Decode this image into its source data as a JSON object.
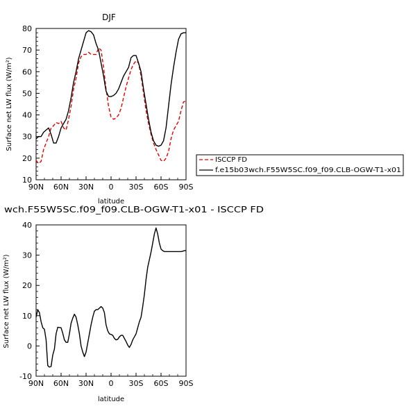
{
  "chart_data": [
    {
      "type": "line",
      "title": "DJF",
      "xlabel": "latitude",
      "ylabel": "Surface net LW flux (W/m²)",
      "xlim": [
        90,
        -90
      ],
      "ylim": [
        10,
        80
      ],
      "xtick_values": [
        90,
        60,
        30,
        0,
        -30,
        -60,
        -90
      ],
      "xtick_labels": [
        "90N",
        "60N",
        "30N",
        "0",
        "30S",
        "60S",
        "90S"
      ],
      "ytick_values": [
        10,
        20,
        30,
        40,
        50,
        60,
        70,
        80
      ],
      "ytick_labels": [
        "10",
        "20",
        "30",
        "40",
        "50",
        "60",
        "70",
        "80"
      ],
      "legend_position": "right",
      "series": [
        {
          "name": "ISCCP FD",
          "color": "#e00000",
          "dash": "dashed",
          "points": [
            [
              90,
              19
            ],
            [
              87,
              17.5
            ],
            [
              84,
              18.5
            ],
            [
              81,
              24
            ],
            [
              78,
              27
            ],
            [
              75,
              30
            ],
            [
              72,
              34
            ],
            [
              69,
              35
            ],
            [
              66,
              36.5
            ],
            [
              63,
              36
            ],
            [
              60,
              37
            ],
            [
              57,
              34
            ],
            [
              54,
              33
            ],
            [
              51,
              38
            ],
            [
              48,
              44
            ],
            [
              45,
              52
            ],
            [
              42,
              57
            ],
            [
              39,
              64
            ],
            [
              36,
              67
            ],
            [
              33,
              68
            ],
            [
              30,
              68
            ],
            [
              27,
              69
            ],
            [
              24,
              68
            ],
            [
              21,
              68
            ],
            [
              18,
              68
            ],
            [
              15,
              71
            ],
            [
              12,
              70
            ],
            [
              9,
              62
            ],
            [
              6,
              52
            ],
            [
              3,
              44
            ],
            [
              0,
              39
            ],
            [
              -3,
              38
            ],
            [
              -6,
              38.5
            ],
            [
              -9,
              40
            ],
            [
              -12,
              43
            ],
            [
              -15,
              48
            ],
            [
              -18,
              53
            ],
            [
              -21,
              57
            ],
            [
              -24,
              61
            ],
            [
              -27,
              63.5
            ],
            [
              -30,
              65
            ],
            [
              -33,
              64
            ],
            [
              -36,
              58
            ],
            [
              -39,
              50
            ],
            [
              -42,
              42
            ],
            [
              -45,
              36
            ],
            [
              -48,
              31
            ],
            [
              -51,
              27
            ],
            [
              -54,
              24
            ],
            [
              -57,
              21.5
            ],
            [
              -60,
              19
            ],
            [
              -63,
              18.5
            ],
            [
              -66,
              20
            ],
            [
              -69,
              23
            ],
            [
              -72,
              29
            ],
            [
              -75,
              33
            ],
            [
              -78,
              35
            ],
            [
              -81,
              37
            ],
            [
              -84,
              42
            ],
            [
              -87,
              46
            ],
            [
              -90,
              46.5
            ]
          ]
        },
        {
          "name": "f.e15b03wch.F55W5SC.f09_f09.CLB-OGW-T1-x01",
          "color": "#000000",
          "dash": "solid",
          "points": [
            [
              90,
              29
            ],
            [
              87,
              30
            ],
            [
              84,
              30
            ],
            [
              81,
              32
            ],
            [
              78,
              33
            ],
            [
              75,
              34
            ],
            [
              72,
              31
            ],
            [
              69,
              27
            ],
            [
              66,
              27
            ],
            [
              63,
              30
            ],
            [
              60,
              34
            ],
            [
              57,
              36
            ],
            [
              54,
              38
            ],
            [
              51,
              42
            ],
            [
              48,
              48
            ],
            [
              45,
              55
            ],
            [
              42,
              60
            ],
            [
              39,
              66
            ],
            [
              36,
              70
            ],
            [
              33,
              74
            ],
            [
              30,
              78
            ],
            [
              27,
              79
            ],
            [
              24,
              78.5
            ],
            [
              21,
              77
            ],
            [
              18,
              73
            ],
            [
              15,
              70
            ],
            [
              12,
              64
            ],
            [
              9,
              58
            ],
            [
              6,
              51
            ],
            [
              3,
              48.5
            ],
            [
              0,
              48.5
            ],
            [
              -3,
              49
            ],
            [
              -6,
              50
            ],
            [
              -9,
              52
            ],
            [
              -12,
              55
            ],
            [
              -15,
              58
            ],
            [
              -18,
              60
            ],
            [
              -21,
              62
            ],
            [
              -24,
              66.5
            ],
            [
              -27,
              67.5
            ],
            [
              -30,
              67.5
            ],
            [
              -33,
              64
            ],
            [
              -36,
              60
            ],
            [
              -39,
              52
            ],
            [
              -42,
              45
            ],
            [
              -45,
              38
            ],
            [
              -48,
              32
            ],
            [
              -51,
              28
            ],
            [
              -54,
              26
            ],
            [
              -57,
              25.5
            ],
            [
              -60,
              26
            ],
            [
              -63,
              28
            ],
            [
              -66,
              34
            ],
            [
              -69,
              44
            ],
            [
              -72,
              54
            ],
            [
              -75,
              62
            ],
            [
              -78,
              69
            ],
            [
              -81,
              75
            ],
            [
              -84,
              77.5
            ],
            [
              -87,
              78
            ],
            [
              -90,
              78
            ]
          ]
        }
      ]
    },
    {
      "type": "line",
      "title": "wch.F55W5SC.f09_f09.CLB-OGW-T1-x01 - ISCCP FD",
      "xlabel": "latitude",
      "ylabel": "Surface net LW flux (W/m²)",
      "xlim": [
        90,
        -90
      ],
      "ylim": [
        -10,
        40
      ],
      "xtick_values": [
        90,
        60,
        30,
        0,
        -30,
        -60,
        -90
      ],
      "xtick_labels": [
        "90N",
        "60N",
        "30N",
        "0",
        "30S",
        "60S",
        "90S"
      ],
      "ytick_values": [
        -10,
        0,
        10,
        20,
        30,
        40
      ],
      "ytick_labels": [
        "-10",
        "0",
        "10",
        "20",
        "30",
        "40"
      ],
      "series": [
        {
          "color": "#000000",
          "dash": "solid",
          "points": [
            [
              90,
              9.5
            ],
            [
              88,
              12
            ],
            [
              86,
              11
            ],
            [
              84,
              8
            ],
            [
              82,
              6
            ],
            [
              80,
              5.5
            ],
            [
              78,
              2
            ],
            [
              76,
              -6.5
            ],
            [
              74,
              -7
            ],
            [
              72,
              -6.8
            ],
            [
              70,
              -3
            ],
            [
              68,
              -1
            ],
            [
              66,
              4
            ],
            [
              64,
              6.2
            ],
            [
              62,
              6.1
            ],
            [
              60,
              6
            ],
            [
              58,
              4.2
            ],
            [
              56,
              2
            ],
            [
              54,
              1.2
            ],
            [
              52,
              1.2
            ],
            [
              50,
              4
            ],
            [
              48,
              7.5
            ],
            [
              46,
              9.2
            ],
            [
              44,
              10.5
            ],
            [
              42,
              9.5
            ],
            [
              40,
              7
            ],
            [
              38,
              4
            ],
            [
              36,
              0
            ],
            [
              34,
              -2
            ],
            [
              32,
              -3.5
            ],
            [
              30,
              -2
            ],
            [
              28,
              1
            ],
            [
              26,
              4
            ],
            [
              24,
              7
            ],
            [
              22,
              9.5
            ],
            [
              20,
              11.5
            ],
            [
              18,
              12
            ],
            [
              16,
              12
            ],
            [
              14,
              12.5
            ],
            [
              12,
              13
            ],
            [
              10,
              12.5
            ],
            [
              8,
              11
            ],
            [
              6,
              7
            ],
            [
              4,
              5
            ],
            [
              2,
              4
            ],
            [
              0,
              3.8
            ],
            [
              -2,
              3.5
            ],
            [
              -4,
              2.5
            ],
            [
              -6,
              2
            ],
            [
              -8,
              2.2
            ],
            [
              -10,
              3
            ],
            [
              -12,
              3.5
            ],
            [
              -14,
              3.5
            ],
            [
              -16,
              2.5
            ],
            [
              -18,
              1.5
            ],
            [
              -20,
              0.3
            ],
            [
              -22,
              -0.5
            ],
            [
              -24,
              0.5
            ],
            [
              -26,
              2
            ],
            [
              -28,
              3
            ],
            [
              -30,
              4
            ],
            [
              -32,
              6
            ],
            [
              -34,
              8
            ],
            [
              -36,
              9.5
            ],
            [
              -38,
              13
            ],
            [
              -40,
              17
            ],
            [
              -42,
              22
            ],
            [
              -44,
              26
            ],
            [
              -46,
              28.5
            ],
            [
              -48,
              31
            ],
            [
              -50,
              34
            ],
            [
              -52,
              37
            ],
            [
              -54,
              39
            ],
            [
              -56,
              37
            ],
            [
              -58,
              34
            ],
            [
              -60,
              32
            ],
            [
              -62,
              31.5
            ],
            [
              -64,
              31.2
            ],
            [
              -66,
              31.2
            ],
            [
              -68,
              31.2
            ],
            [
              -70,
              31.2
            ],
            [
              -72,
              31.2
            ],
            [
              -74,
              31.2
            ],
            [
              -76,
              31.2
            ],
            [
              -78,
              31.2
            ],
            [
              -80,
              31.2
            ],
            [
              -82,
              31.2
            ],
            [
              -84,
              31.2
            ],
            [
              -86,
              31.3
            ],
            [
              -88,
              31.5
            ],
            [
              -90,
              31.5
            ]
          ]
        }
      ]
    }
  ]
}
